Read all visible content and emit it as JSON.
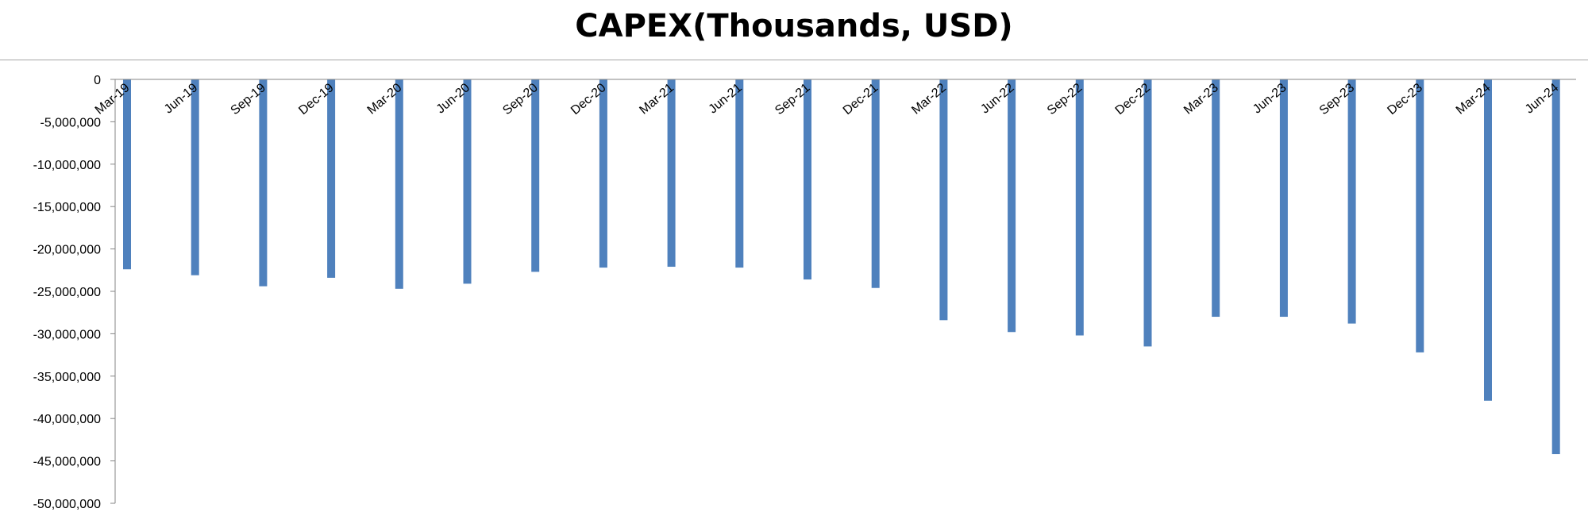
{
  "chart_data": {
    "type": "bar",
    "title": "CAPEX(Thousands, USD)",
    "xlabel": "",
    "ylabel": "",
    "categories": [
      "Mar-19",
      "Jun-19",
      "Sep-19",
      "Dec-19",
      "Mar-20",
      "Jun-20",
      "Sep-20",
      "Dec-20",
      "Mar-21",
      "Jun-21",
      "Sep-21",
      "Dec-21",
      "Mar-22",
      "Jun-22",
      "Sep-22",
      "Dec-22",
      "Mar-23",
      "Jun-23",
      "Sep-23",
      "Dec-23",
      "Mar-24",
      "Jun-24"
    ],
    "values": [
      -22400000,
      -23100000,
      -24400000,
      -23400000,
      -24700000,
      -24100000,
      -22700000,
      -22200000,
      -22100000,
      -22200000,
      -23600000,
      -24600000,
      -28400000,
      -29800000,
      -30200000,
      -31500000,
      -28000000,
      -28000000,
      -28800000,
      -32200000,
      -37900000,
      -44200000
    ],
    "ylim": [
      -50000000,
      0
    ],
    "yticks": [
      0,
      -5000000,
      -10000000,
      -15000000,
      -20000000,
      -25000000,
      -30000000,
      -35000000,
      -40000000,
      -45000000,
      -50000000
    ],
    "ytick_labels": [
      "0",
      "-5,000,000",
      "-10,000,000",
      "-15,000,000",
      "-20,000,000",
      "-25,000,000",
      "-30,000,000",
      "-35,000,000",
      "-40,000,000",
      "-45,000,000",
      "-50,000,000"
    ],
    "grid": false,
    "legend": "none",
    "colors": {
      "bar": "#4f81bd",
      "axis": "#868686"
    }
  }
}
